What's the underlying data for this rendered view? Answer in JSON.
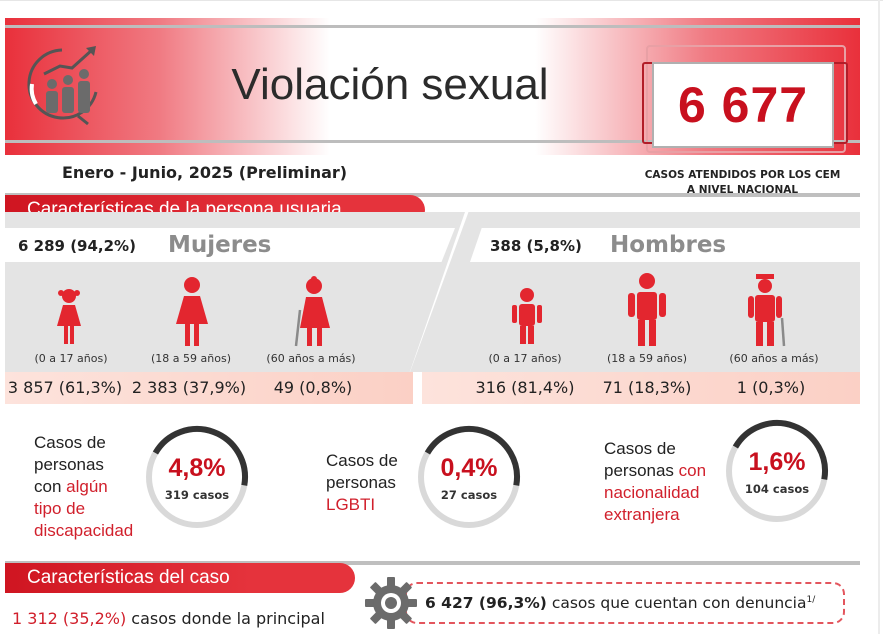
{
  "header": {
    "title": "Violación sexual",
    "total": "6 677",
    "total_caption_line1": "CASOS ATENDIDOS POR LOS CEM",
    "total_caption_line2": "A NIVEL NACIONAL",
    "period": "Enero - Junio,  2025 (Preliminar)"
  },
  "section_user": {
    "title": "Características de la persona usuaria"
  },
  "women": {
    "count": "6 289 (94,2%)",
    "label": "Mujeres",
    "groups": [
      {
        "age": "(0 a 17 años)",
        "value": "3 857 (61,3%)",
        "icon": "girl-icon"
      },
      {
        "age": "(18 a 59 años)",
        "value": "2 383 (37,9%)",
        "icon": "woman-icon"
      },
      {
        "age": "(60 años a más)",
        "value": "49 (0,8%)",
        "icon": "elderly-woman-icon"
      }
    ]
  },
  "men": {
    "count": "388 (5,8%)",
    "label": "Hombres",
    "groups": [
      {
        "age": "(0 a 17 años)",
        "value": "316 (81,4%)",
        "icon": "boy-icon"
      },
      {
        "age": "(18 a 59 años)",
        "value": "71 (18,3%)",
        "icon": "man-icon"
      },
      {
        "age": "(60 años a más)",
        "value": "1 (0,3%)",
        "icon": "elderly-man-icon"
      }
    ]
  },
  "stats": [
    {
      "lines": [
        "Casos de",
        "personas",
        "con "
      ],
      "highlight": [
        "algún",
        "tipo de",
        "discapacidad"
      ],
      "percent": "4,8%",
      "fraction": 0.048,
      "cases": "319 casos"
    },
    {
      "lines": [
        "Casos de",
        "personas"
      ],
      "highlight": [
        "LGBTI"
      ],
      "percent": "0,4%",
      "fraction": 0.004,
      "cases": "27 casos"
    },
    {
      "lines": [
        "Casos de",
        "personas "
      ],
      "highlight": [
        "con",
        "nacionalidad",
        "extranjera"
      ],
      "percent": "1,6%",
      "fraction": 0.016,
      "cases": "104 casos"
    }
  ],
  "section_case": {
    "title": "Características del caso"
  },
  "case": {
    "left_number": "1 312 (35,2%)",
    "left_text": "casos donde la principal",
    "denuncia_number": "6 427 (96,3%)",
    "denuncia_text": "casos que cuentan con denuncia",
    "denuncia_note": "1/"
  },
  "colors": {
    "accent": "#c8101e",
    "highlight": "#d1202c",
    "grey": "#e4e4e4"
  }
}
